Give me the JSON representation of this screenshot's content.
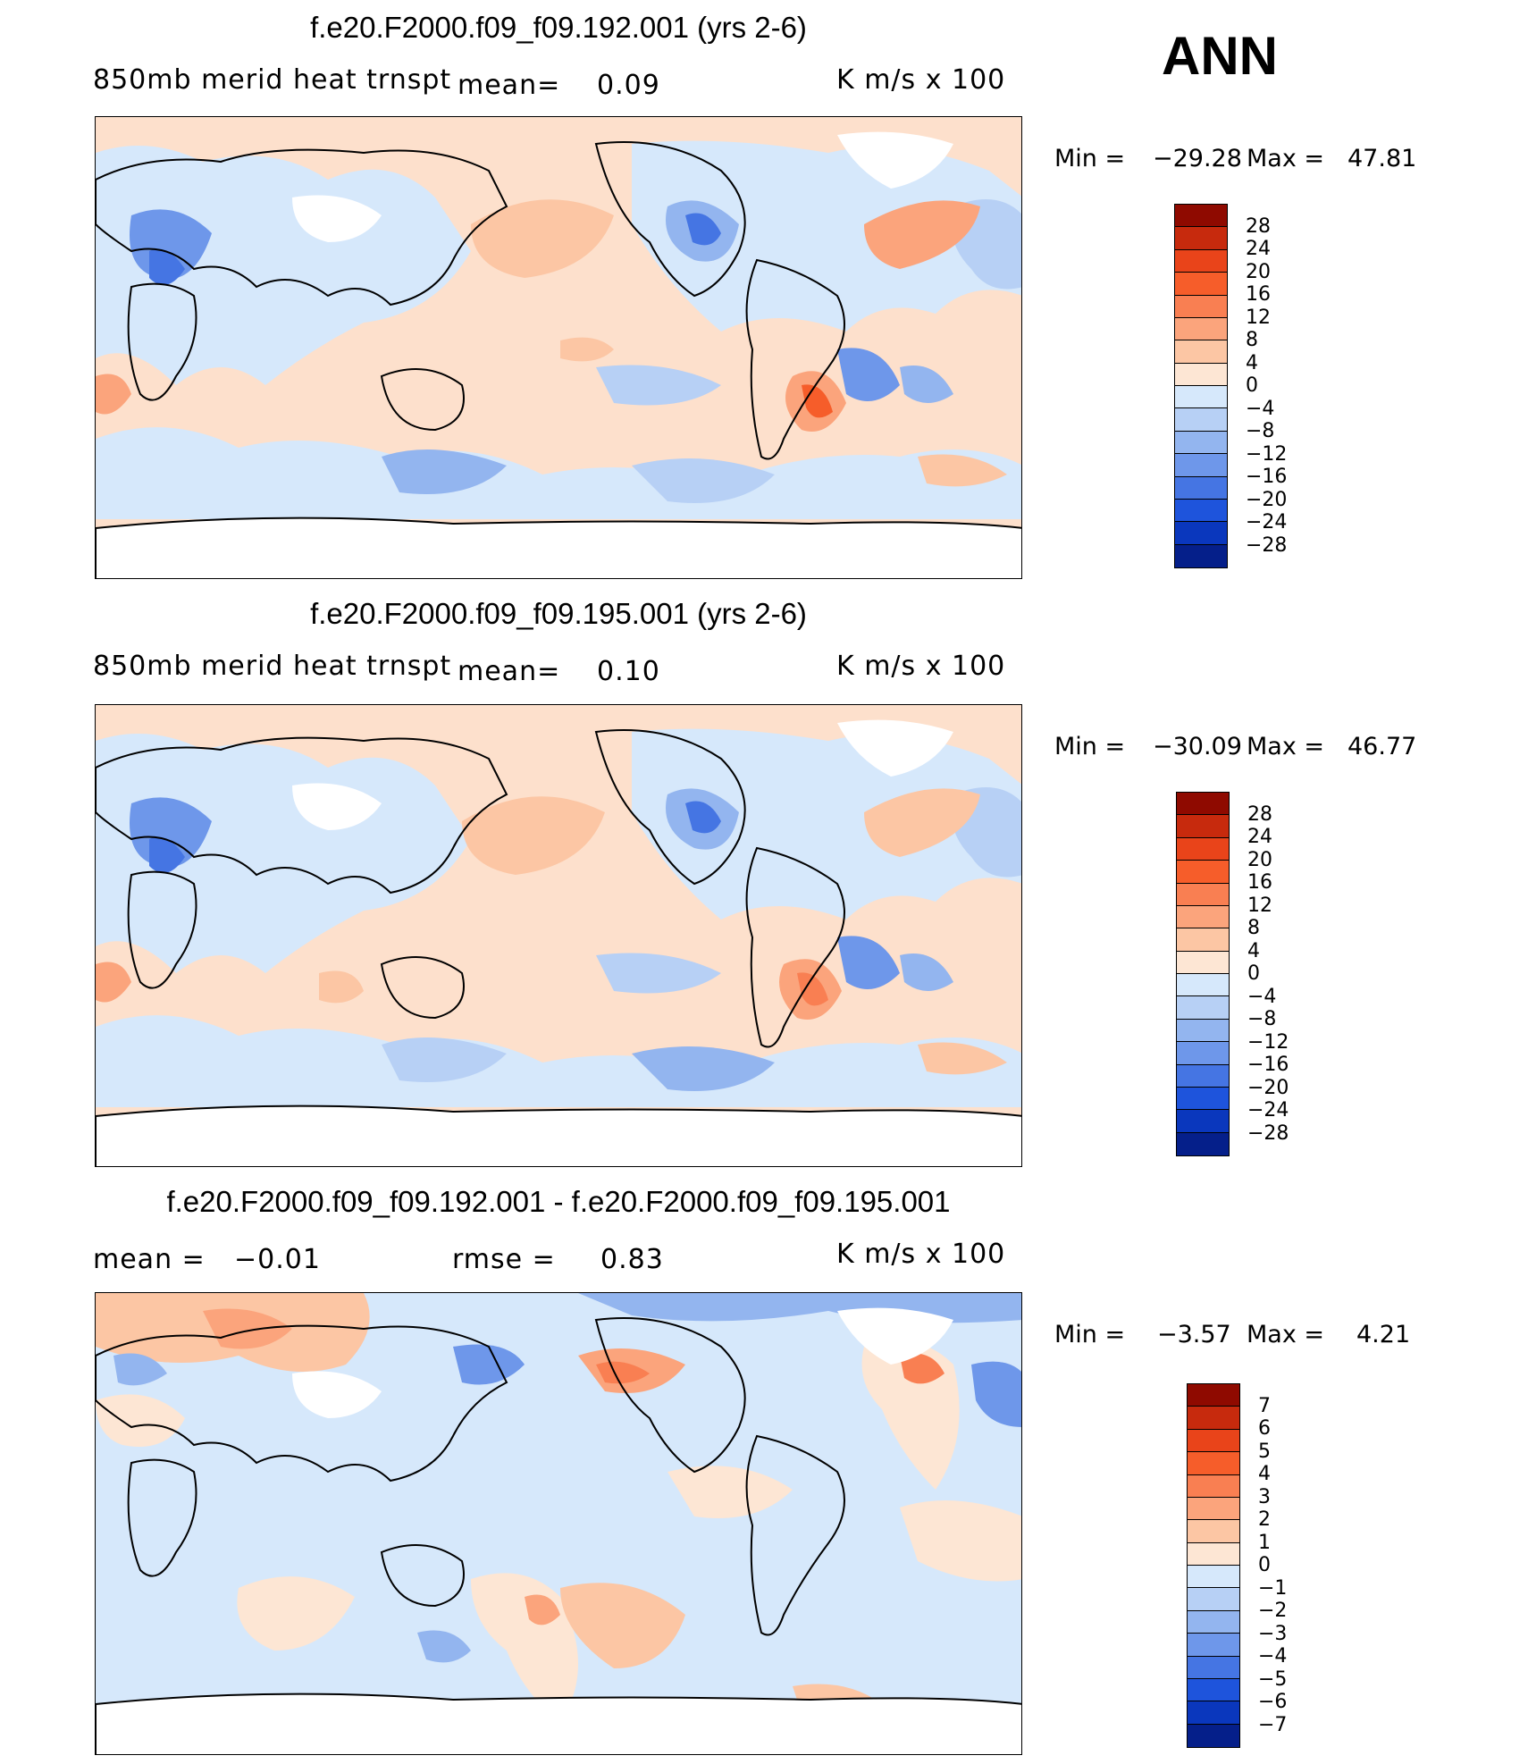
{
  "season": "ANN",
  "colors": {
    "pos": [
      "#fde6d4",
      "#fcc6a4",
      "#fba47c",
      "#f97f52",
      "#f65d2a",
      "#e9441a",
      "#c72a0d",
      "#8f0a00"
    ],
    "neg": [
      "#d6e8fb",
      "#b7d0f5",
      "#93b5ef",
      "#6e97ea",
      "#4575e3",
      "#1e54dc",
      "#0a37bd",
      "#051f8a"
    ],
    "land_mask": "#ffffff",
    "coast": "#000000"
  },
  "panels": [
    {
      "title": "f.e20.F2000.f09_f09.192.001 (yrs 2-6)",
      "subtitle_left": "850mb  merid  heat  trnspt",
      "mean_label": "mean=",
      "mean_value": "0.09",
      "units": "K  m/s  x  100",
      "min_label": "Min  =",
      "min_value": "−29.28",
      "max_label": "Max  =",
      "max_value": "47.81",
      "colorbar_labels": [
        "28",
        "24",
        "20",
        "16",
        "12",
        "8",
        "4",
        "0",
        "−4",
        "−8",
        "−12",
        "−16",
        "−20",
        "−24",
        "−28"
      ]
    },
    {
      "title": "f.e20.F2000.f09_f09.195.001 (yrs 2-6)",
      "subtitle_left": "850mb  merid  heat  trnspt",
      "mean_label": "mean=",
      "mean_value": "0.10",
      "units": "K  m/s  x  100",
      "min_label": "Min  =",
      "min_value": "−30.09",
      "max_label": "Max  =",
      "max_value": "46.77",
      "colorbar_labels": [
        "28",
        "24",
        "20",
        "16",
        "12",
        "8",
        "4",
        "0",
        "−4",
        "−8",
        "−12",
        "−16",
        "−20",
        "−24",
        "−28"
      ]
    },
    {
      "title": "f.e20.F2000.f09_f09.192.001 - f.e20.F2000.f09_f09.195.001",
      "mean_label": "mean  =",
      "mean_value": "−0.01",
      "rmse_label": "rmse  =",
      "rmse_value": "0.83",
      "units": "K  m/s  x  100",
      "min_label": "Min  =",
      "min_value": "−3.57",
      "max_label": "Max  =",
      "max_value": "4.21",
      "colorbar_labels": [
        "7",
        "6",
        "5",
        "4",
        "3",
        "2",
        "1",
        "0",
        "−1",
        "−2",
        "−3",
        "−4",
        "−5",
        "−6",
        "−7"
      ]
    }
  ],
  "chart_data": [
    {
      "type": "heatmap",
      "title": "f.e20.F2000.f09_f09.192.001 (yrs 2-6)",
      "variable": "850mb merid heat trnspt",
      "units": "K m/s x 100",
      "mean": 0.09,
      "min": -29.28,
      "max": 47.81,
      "contour_levels": [
        -28,
        -24,
        -20,
        -16,
        -12,
        -8,
        -4,
        0,
        4,
        8,
        12,
        16,
        20,
        24,
        28
      ]
    },
    {
      "type": "heatmap",
      "title": "f.e20.F2000.f09_f09.195.001 (yrs 2-6)",
      "variable": "850mb merid heat trnspt",
      "units": "K m/s x 100",
      "mean": 0.1,
      "min": -30.09,
      "max": 46.77,
      "contour_levels": [
        -28,
        -24,
        -20,
        -16,
        -12,
        -8,
        -4,
        0,
        4,
        8,
        12,
        16,
        20,
        24,
        28
      ]
    },
    {
      "type": "heatmap",
      "title": "f.e20.F2000.f09_f09.192.001 - f.e20.F2000.f09_f09.195.001",
      "units": "K m/s x 100",
      "mean": -0.01,
      "rmse": 0.83,
      "min": -3.57,
      "max": 4.21,
      "contour_levels": [
        -7,
        -6,
        -5,
        -4,
        -3,
        -2,
        -1,
        0,
        1,
        2,
        3,
        4,
        5,
        6,
        7
      ]
    }
  ]
}
